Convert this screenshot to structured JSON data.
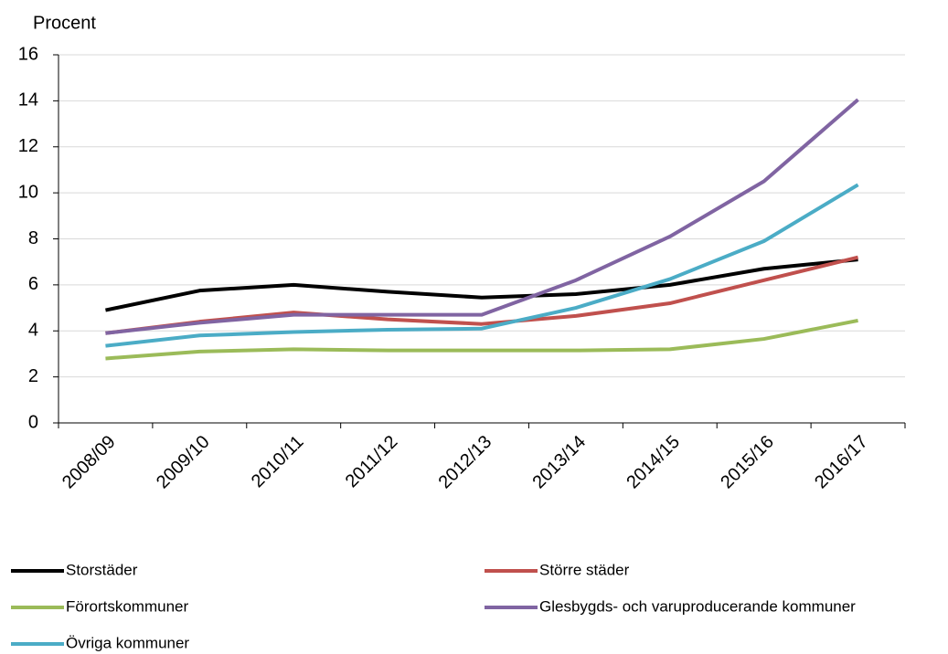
{
  "chart_data": {
    "type": "line",
    "y_label": "Procent",
    "categories": [
      "2008/09",
      "2009/10",
      "2010/11",
      "2011/12",
      "2012/13",
      "2013/14",
      "2014/15",
      "2015/16",
      "2016/17"
    ],
    "series": [
      {
        "name": "Storstäder",
        "color": "#000000",
        "values": [
          4.9,
          5.75,
          6.0,
          5.7,
          5.45,
          5.6,
          6.0,
          6.7,
          7.1
        ]
      },
      {
        "name": "Större städer",
        "color": "#c0504d",
        "values": [
          3.9,
          4.4,
          4.8,
          4.5,
          4.3,
          4.65,
          5.2,
          6.2,
          7.2
        ]
      },
      {
        "name": "Förortskommuner",
        "color": "#9bbb59",
        "values": [
          2.8,
          3.1,
          3.2,
          3.15,
          3.15,
          3.15,
          3.2,
          3.65,
          4.45
        ]
      },
      {
        "name": "Glesbygds- och varuproducerande kommuner",
        "color": "#8064a2",
        "values": [
          3.9,
          4.35,
          4.7,
          4.7,
          4.7,
          6.2,
          8.1,
          10.5,
          14.05
        ]
      },
      {
        "name": "Övriga kommuner",
        "color": "#4bacc6",
        "values": [
          3.35,
          3.8,
          3.95,
          4.05,
          4.1,
          5.0,
          6.25,
          7.9,
          10.35
        ]
      }
    ],
    "ylim": [
      0,
      16
    ],
    "yticks": [
      0,
      2,
      4,
      6,
      8,
      10,
      12,
      14,
      16
    ],
    "grid": true
  }
}
